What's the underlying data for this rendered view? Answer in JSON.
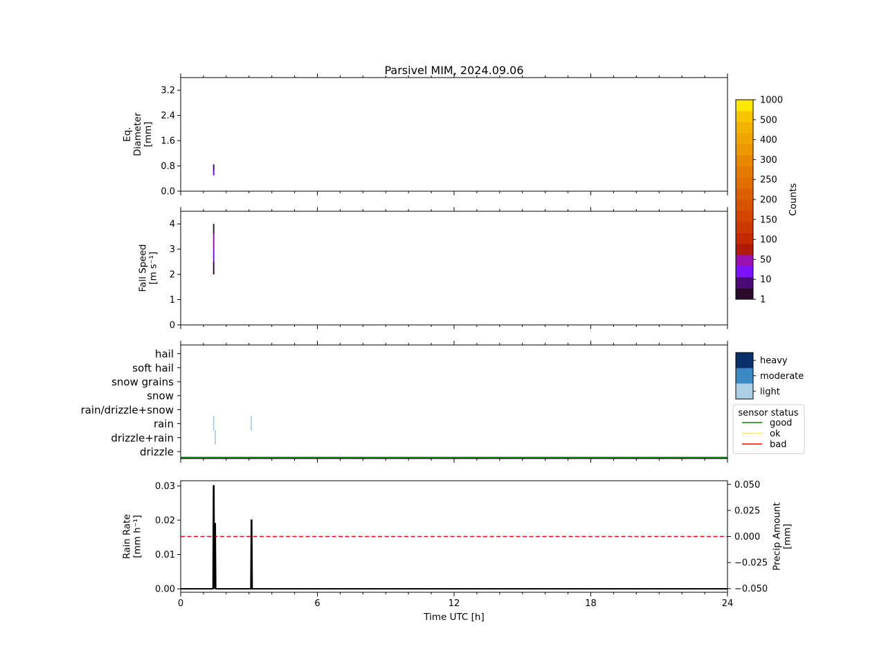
{
  "chart_data": {
    "title": "Parsivel MIM, 2024.09.06",
    "x_axis": {
      "label": "Time UTC [h]",
      "range": [
        0,
        24
      ],
      "ticks": [
        "0",
        "6",
        "12",
        "18",
        "24"
      ],
      "minor_step_hours": 1
    },
    "panels": [
      {
        "type": "heatmap",
        "id": "diameter",
        "ylabel_lines": [
          "Eq.",
          "Diameter",
          "[mm]"
        ],
        "ylim": [
          0,
          3.6
        ],
        "yticks": [
          "0.0",
          "0.8",
          "1.6",
          "2.4",
          "3.2"
        ],
        "cells": [
          {
            "t": 1.45,
            "y0": 0.5,
            "y1": 0.65,
            "color": "#7a10ff"
          },
          {
            "t": 1.45,
            "y0": 0.65,
            "y1": 0.85,
            "color": "#4b0a78"
          }
        ]
      },
      {
        "type": "heatmap",
        "id": "fallspeed",
        "ylabel_lines": [
          "Fall Speed",
          "[m s⁻¹]"
        ],
        "ylim": [
          0,
          4.5
        ],
        "yticks": [
          "0",
          "1",
          "2",
          "3",
          "4"
        ],
        "cells": [
          {
            "t": 1.45,
            "y0": 2.0,
            "y1": 2.5,
            "color": "#3a0a30"
          },
          {
            "t": 1.45,
            "y0": 2.5,
            "y1": 3.0,
            "color": "#7a10ff"
          },
          {
            "t": 1.45,
            "y0": 3.0,
            "y1": 3.6,
            "color": "#9a10b0"
          },
          {
            "t": 1.45,
            "y0": 3.6,
            "y1": 4.0,
            "color": "#222222"
          }
        ]
      },
      {
        "type": "category",
        "id": "precip_type",
        "categories": [
          "drizzle",
          "drizzle+rain",
          "rain",
          "rain/drizzle+snow",
          "snow",
          "snow grains",
          "soft hail",
          "hail"
        ],
        "events": [
          {
            "t": 1.45,
            "category": "rain",
            "intensity": "light"
          },
          {
            "t": 1.52,
            "category": "drizzle+rain",
            "intensity": "light"
          },
          {
            "t": 3.1,
            "category": "rain",
            "intensity": "light"
          }
        ],
        "sensor_status": [
          {
            "t0": 0,
            "t1": 24,
            "status": "good"
          }
        ]
      },
      {
        "type": "line",
        "id": "rainrate",
        "ylabel_lines": [
          "Rain Rate",
          "[mm h⁻¹]"
        ],
        "ylim": [
          -0.001,
          0.0315
        ],
        "yticks": [
          {
            "value": 0.0,
            "label": "0.00"
          },
          {
            "value": 0.01,
            "label": "0.01"
          },
          {
            "value": 0.02,
            "label": "0.02"
          },
          {
            "value": 0.03,
            "label": "0.03"
          }
        ],
        "series": [
          {
            "color": "#000000",
            "x": [
              0,
              1.42,
              1.44,
              1.46,
              1.48,
              1.5,
              1.52,
              1.54,
              1.56,
              3.08,
              3.1,
              3.12,
              3.14,
              24
            ],
            "y": [
              0,
              0,
              0.03,
              0.03,
              0,
              0.019,
              0.019,
              0,
              0,
              0,
              0.02,
              0.02,
              0,
              0
            ]
          }
        ],
        "secondary_axis": {
          "ylabel_lines": [
            "Precip Amount",
            "[mm]"
          ],
          "ylim": [
            -0.0535,
            0.0535
          ],
          "yticks": [
            {
              "value": 0.05,
              "label": "0.050"
            },
            {
              "value": 0.025,
              "label": "0.025"
            },
            {
              "value": 0.0,
              "label": "0.000"
            },
            {
              "value": -0.025,
              "label": "−0.025"
            },
            {
              "value": -0.05,
              "label": "−0.050"
            }
          ],
          "series": [
            {
              "color": "#ff0000",
              "style": "dashed",
              "x": [
                0,
                24
              ],
              "y": [
                0,
                0
              ]
            }
          ]
        }
      }
    ],
    "colorbars": {
      "counts": {
        "label": "Counts",
        "ticks": [
          "1",
          "10",
          "50",
          "100",
          "150",
          "200",
          "250",
          "300",
          "400",
          "500",
          "1000"
        ],
        "colors": [
          "#2b0a2a",
          "#4b0a78",
          "#7a10ff",
          "#9a10b0",
          "#b01a08",
          "#c42a00",
          "#cc3800",
          "#d24600",
          "#d85300",
          "#dc6000",
          "#e06e00",
          "#e47b00",
          "#e88800",
          "#ec9600",
          "#f0a400",
          "#f4b200",
          "#f8c600",
          "#ffe800"
        ]
      },
      "intensity": {
        "levels": [
          {
            "label": "heavy",
            "color": "#08306b"
          },
          {
            "label": "moderate",
            "color": "#3a88c4"
          },
          {
            "label": "light",
            "color": "#abd0e6"
          }
        ]
      }
    },
    "legend": {
      "title": "sensor status",
      "items": [
        {
          "label": "good",
          "color": "#008000"
        },
        {
          "label": "ok",
          "color": "#ffff00"
        },
        {
          "label": "bad",
          "color": "#ff0000"
        }
      ]
    }
  }
}
